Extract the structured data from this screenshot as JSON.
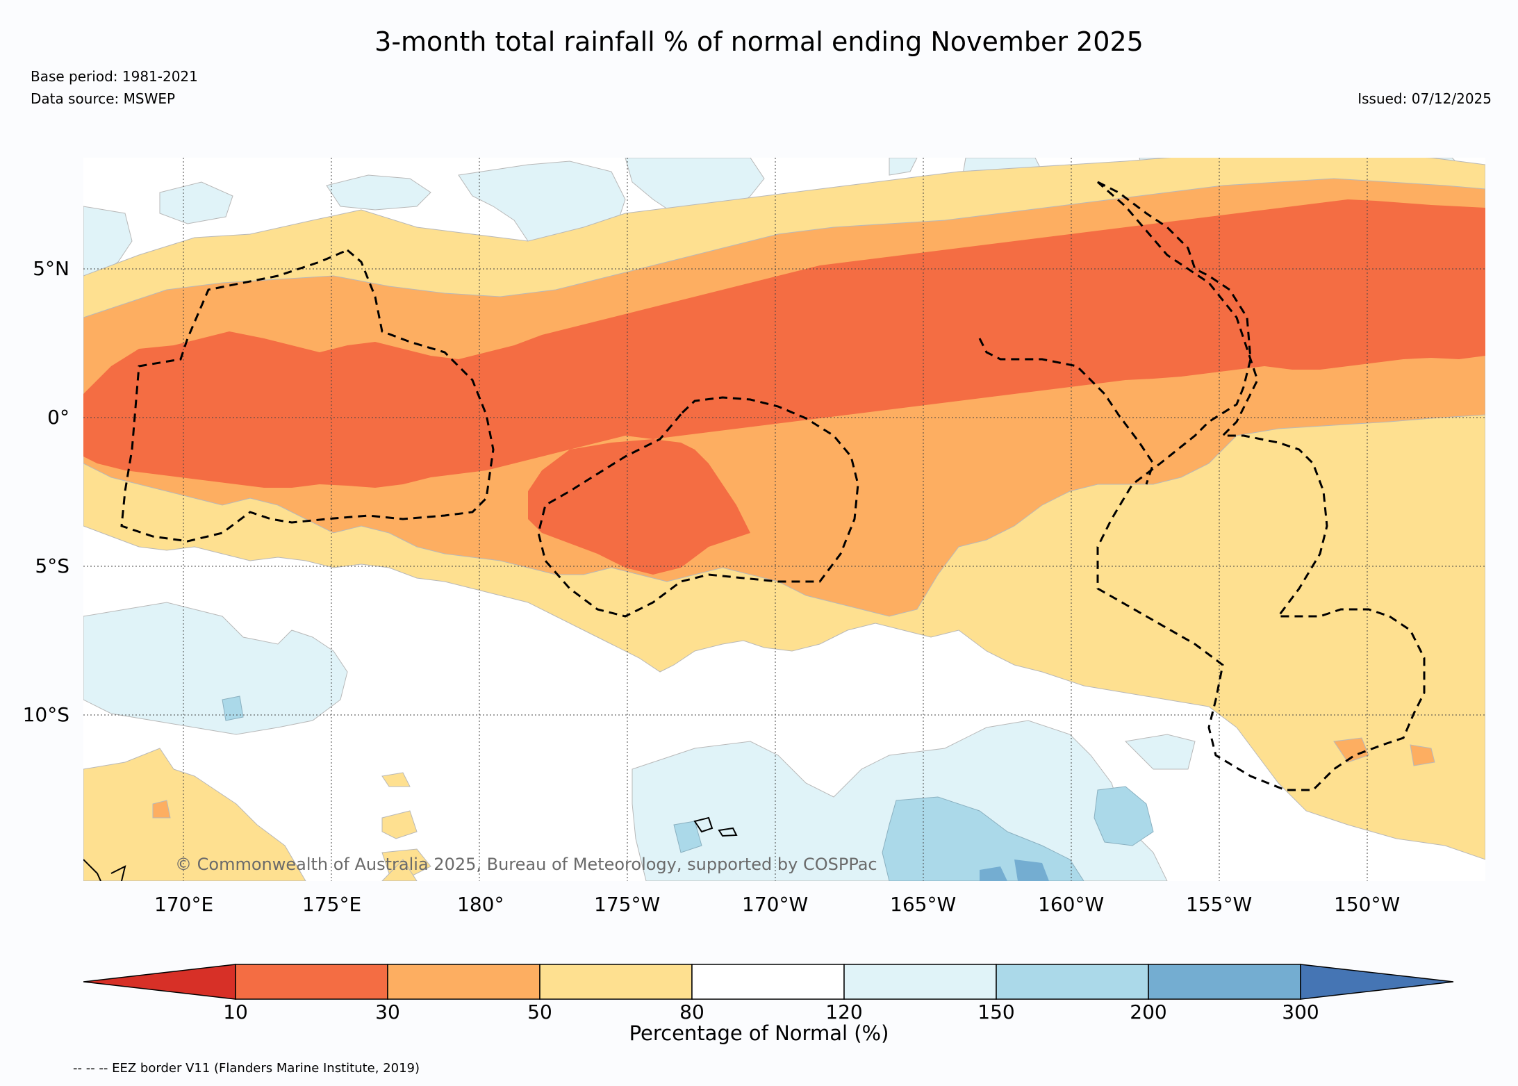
{
  "title": "3-month total rainfall % of normal ending November 2025",
  "base_period": "Base period: 1981-2021",
  "data_source": "Data source: MSWEP",
  "issued": "Issued: 07/12/2025",
  "copyright": "© Commonwealth of Australia 2025, Bureau of Meteorology, supported by COSPPac",
  "lat_labels": [
    "5°N",
    "0°",
    "5°S",
    "10°S"
  ],
  "lon_labels": [
    "170°E",
    "175°E",
    "180°",
    "175°W",
    "170°W",
    "165°W",
    "160°W",
    "155°W",
    "150°W"
  ],
  "colorbar": {
    "title": "Percentage of Normal (%)",
    "tick_labels": [
      "10",
      "30",
      "50",
      "80",
      "120",
      "150",
      "200",
      "300"
    ],
    "colors": [
      "#d73027",
      "#f46d43",
      "#fdae61",
      "#fee090",
      "#ffffff",
      "#e0f3f8",
      "#abd9e9",
      "#74add1",
      "#4575b4"
    ]
  },
  "footer": "-- -- -- EEZ border V11 (Flanders Marine Institute, 2019)"
}
